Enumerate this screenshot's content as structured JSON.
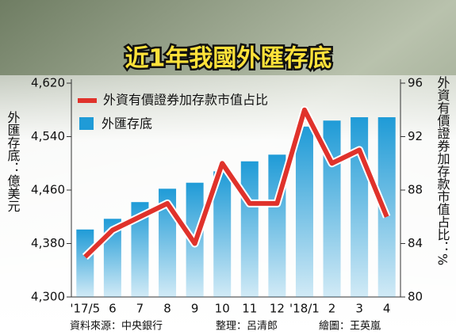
{
  "chart_data": {
    "type": "bar-line",
    "title": "近1年我國外匯存底",
    "y_label": "外匯存底：億美元",
    "y2_label": "外資有價證券加存款市值占比：%",
    "categories": [
      "'17/5",
      "6",
      "7",
      "8",
      "9",
      "10",
      "11",
      "12",
      "'18/1",
      "2",
      "3",
      "4"
    ],
    "series": [
      {
        "name": "外資有價證券加存款市值占比",
        "type": "line",
        "axis": "y2",
        "color": "#e0322b",
        "values": [
          83,
          85,
          86,
          87,
          84,
          90,
          87,
          87,
          94,
          90,
          91,
          86
        ]
      },
      {
        "name": "外匯存底",
        "type": "bar",
        "color": "#1f9bd7",
        "values": [
          4401,
          4417,
          4442,
          4462,
          4471,
          4488,
          4503,
          4513,
          4555,
          4564,
          4569,
          4569
        ]
      }
    ],
    "ylim": [
      4300,
      4620
    ],
    "yticks": [
      {
        "value": 4300,
        "label": "4,300"
      },
      {
        "value": 4380,
        "label": "4,380"
      },
      {
        "value": 4460,
        "label": "4,460"
      },
      {
        "value": 4540,
        "label": "4,540"
      },
      {
        "value": 4620,
        "label": "4,620"
      }
    ],
    "y2lim": [
      80,
      96
    ],
    "y2ticks": [
      80,
      84,
      88,
      92,
      96
    ],
    "source": "資料來源：中央銀行",
    "editor": "整理：呂清郎",
    "artist": "繪圖：王英嵐"
  }
}
